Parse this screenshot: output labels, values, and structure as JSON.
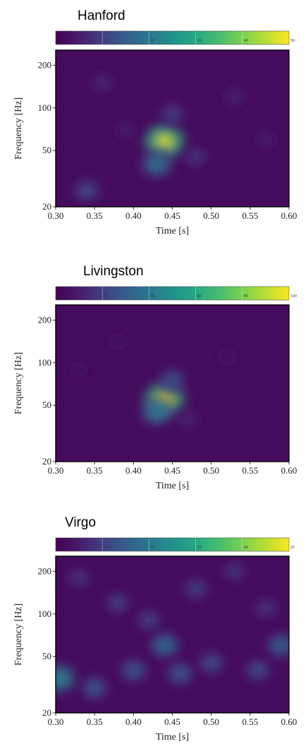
{
  "chart_data": [
    {
      "type": "heatmap",
      "title": "Hanford",
      "xlabel": "Time [s]",
      "ylabel": "Frequency [Hz]",
      "xlim": [
        0.3,
        0.6
      ],
      "ylim": [
        20,
        256
      ],
      "yscale": "log",
      "x_ticks": [
        "0.30",
        "0.35",
        "0.40",
        "0.45",
        "0.50",
        "0.55",
        "0.60"
      ],
      "y_ticks": [
        {
          "value": 20,
          "label": "20"
        },
        {
          "value": 50,
          "label": "50"
        },
        {
          "value": 100,
          "label": "100"
        },
        {
          "value": 200,
          "label": "200"
        }
      ],
      "colorbar": {
        "range": [
          0,
          50
        ],
        "ticks": [
          "0",
          "10",
          "20",
          "30",
          "40",
          "50"
        ]
      },
      "peak": {
        "time": 0.44,
        "frequency": 58,
        "value": 50
      },
      "blobs": [
        {
          "time": 0.44,
          "frequency": 58,
          "value": 50
        },
        {
          "time": 0.43,
          "frequency": 40,
          "value": 22
        },
        {
          "time": 0.34,
          "frequency": 26,
          "value": 14
        },
        {
          "time": 0.45,
          "frequency": 90,
          "value": 12
        },
        {
          "time": 0.48,
          "frequency": 45,
          "value": 10
        },
        {
          "time": 0.36,
          "frequency": 150,
          "value": 8
        },
        {
          "time": 0.53,
          "frequency": 120,
          "value": 7
        },
        {
          "time": 0.39,
          "frequency": 70,
          "value": 6
        },
        {
          "time": 0.57,
          "frequency": 60,
          "value": 6
        }
      ]
    },
    {
      "type": "heatmap",
      "title": "Livingston",
      "xlabel": "Time [s]",
      "ylabel": "Frequency [Hz]",
      "xlim": [
        0.3,
        0.6
      ],
      "ylim": [
        20,
        256
      ],
      "yscale": "log",
      "x_ticks": [
        "0.30",
        "0.35",
        "0.40",
        "0.45",
        "0.50",
        "0.55",
        "0.60"
      ],
      "y_ticks": [
        {
          "value": 20,
          "label": "20"
        },
        {
          "value": 50,
          "label": "50"
        },
        {
          "value": 100,
          "label": "100"
        },
        {
          "value": 200,
          "label": "200"
        }
      ],
      "colorbar": {
        "range": [
          0,
          100
        ],
        "ticks": [
          "0",
          "20",
          "40",
          "60",
          "80",
          "100"
        ]
      },
      "peak": {
        "time": 0.44,
        "frequency": 55,
        "value": 100
      },
      "blobs": [
        {
          "time": 0.44,
          "frequency": 55,
          "value": 100
        },
        {
          "time": 0.43,
          "frequency": 45,
          "value": 45
        },
        {
          "time": 0.45,
          "frequency": 75,
          "value": 30
        },
        {
          "time": 0.47,
          "frequency": 40,
          "value": 15
        },
        {
          "time": 0.38,
          "frequency": 140,
          "value": 8
        },
        {
          "time": 0.52,
          "frequency": 110,
          "value": 8
        },
        {
          "time": 0.33,
          "frequency": 90,
          "value": 6
        }
      ]
    },
    {
      "type": "heatmap",
      "title": "Virgo",
      "xlabel": "Time [s]",
      "ylabel": "Frequency [Hz]",
      "xlim": [
        0.3,
        0.6
      ],
      "ylim": [
        20,
        256
      ],
      "yscale": "log",
      "x_ticks": [
        "0.30",
        "0.35",
        "0.40",
        "0.45",
        "0.50",
        "0.55",
        "0.60"
      ],
      "y_ticks": [
        {
          "value": 20,
          "label": "20"
        },
        {
          "value": 50,
          "label": "50"
        },
        {
          "value": 100,
          "label": "100"
        },
        {
          "value": 200,
          "label": "200"
        }
      ],
      "colorbar": {
        "range": [
          0,
          25
        ],
        "ticks": [
          "0",
          "5",
          "10",
          "15",
          "20",
          "25"
        ]
      },
      "peak": {
        "time": 0.305,
        "frequency": 35,
        "value": 13
      },
      "blobs": [
        {
          "time": 0.305,
          "frequency": 35,
          "value": 13
        },
        {
          "time": 0.44,
          "frequency": 60,
          "value": 10
        },
        {
          "time": 0.4,
          "frequency": 40,
          "value": 8
        },
        {
          "time": 0.46,
          "frequency": 38,
          "value": 8
        },
        {
          "time": 0.5,
          "frequency": 45,
          "value": 7
        },
        {
          "time": 0.56,
          "frequency": 40,
          "value": 7
        },
        {
          "time": 0.35,
          "frequency": 30,
          "value": 8
        },
        {
          "time": 0.59,
          "frequency": 60,
          "value": 9
        },
        {
          "time": 0.38,
          "frequency": 120,
          "value": 6
        },
        {
          "time": 0.48,
          "frequency": 150,
          "value": 6
        },
        {
          "time": 0.33,
          "frequency": 180,
          "value": 5
        },
        {
          "time": 0.53,
          "frequency": 200,
          "value": 5
        },
        {
          "time": 0.42,
          "frequency": 90,
          "value": 6
        },
        {
          "time": 0.57,
          "frequency": 110,
          "value": 5
        }
      ]
    }
  ]
}
